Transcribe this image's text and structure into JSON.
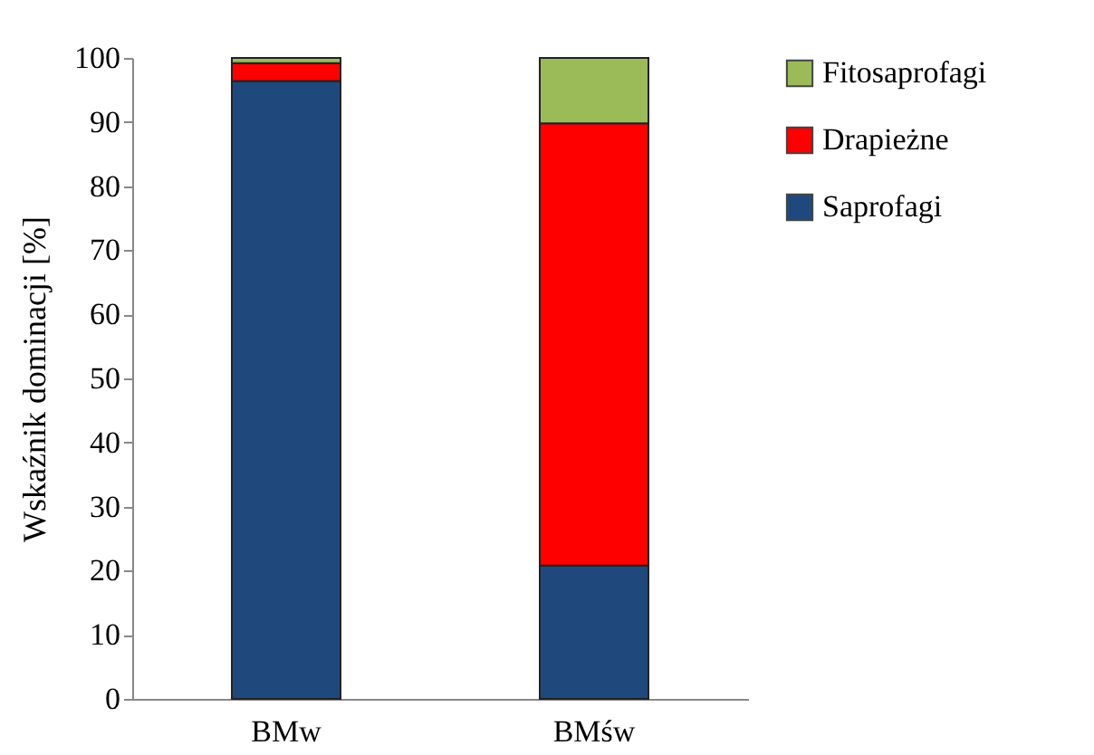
{
  "chart_data": {
    "type": "bar",
    "stacked": true,
    "ylabel": "Wskaźnik dominacji [%]",
    "categories": [
      "BMw",
      "BMśw"
    ],
    "series": [
      {
        "name": "Saprofagi",
        "color": "#1f497d",
        "values": [
          96.4,
          20.8
        ]
      },
      {
        "name": "Drapieżne",
        "color": "#ff0000",
        "values": [
          2.8,
          69.0
        ]
      },
      {
        "name": "Fitosaprofagi",
        "color": "#9bbb59",
        "values": [
          0.8,
          10.2
        ]
      }
    ],
    "ylim": [
      0,
      100
    ],
    "yticks": [
      0,
      10,
      20,
      30,
      40,
      50,
      60,
      70,
      80,
      90,
      100
    ],
    "grid": false,
    "legend": "right"
  }
}
